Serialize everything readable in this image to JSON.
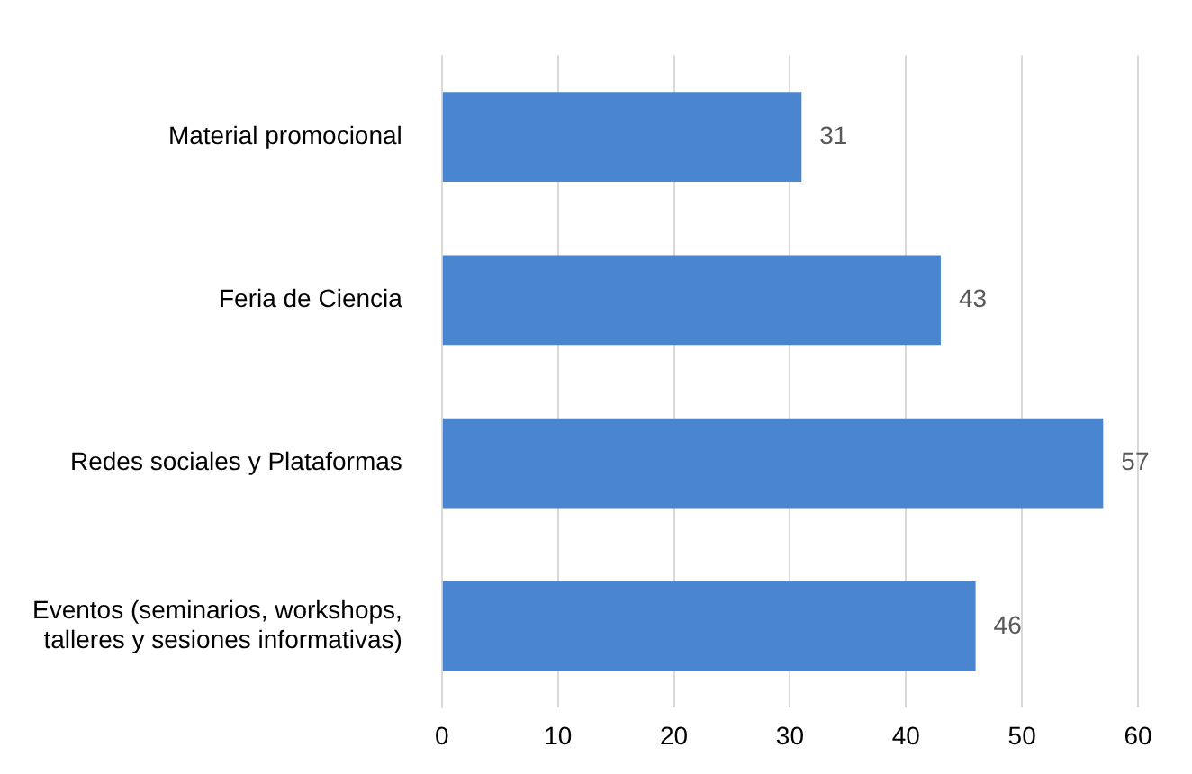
{
  "chart_data": {
    "type": "bar",
    "orientation": "horizontal",
    "categories": [
      "Material promocional",
      "Feria de Ciencia",
      "Redes sociales y Plataformas",
      "Eventos (seminarios, workshops,\ntalleres y sesiones informativas)"
    ],
    "values": [
      31,
      43,
      57,
      46
    ],
    "color": "#4a86d0",
    "xlim": [
      0,
      60
    ],
    "xticks": [
      0,
      10,
      20,
      30,
      40,
      50,
      60
    ],
    "grid": "x",
    "legend": false,
    "data_labels": true
  }
}
